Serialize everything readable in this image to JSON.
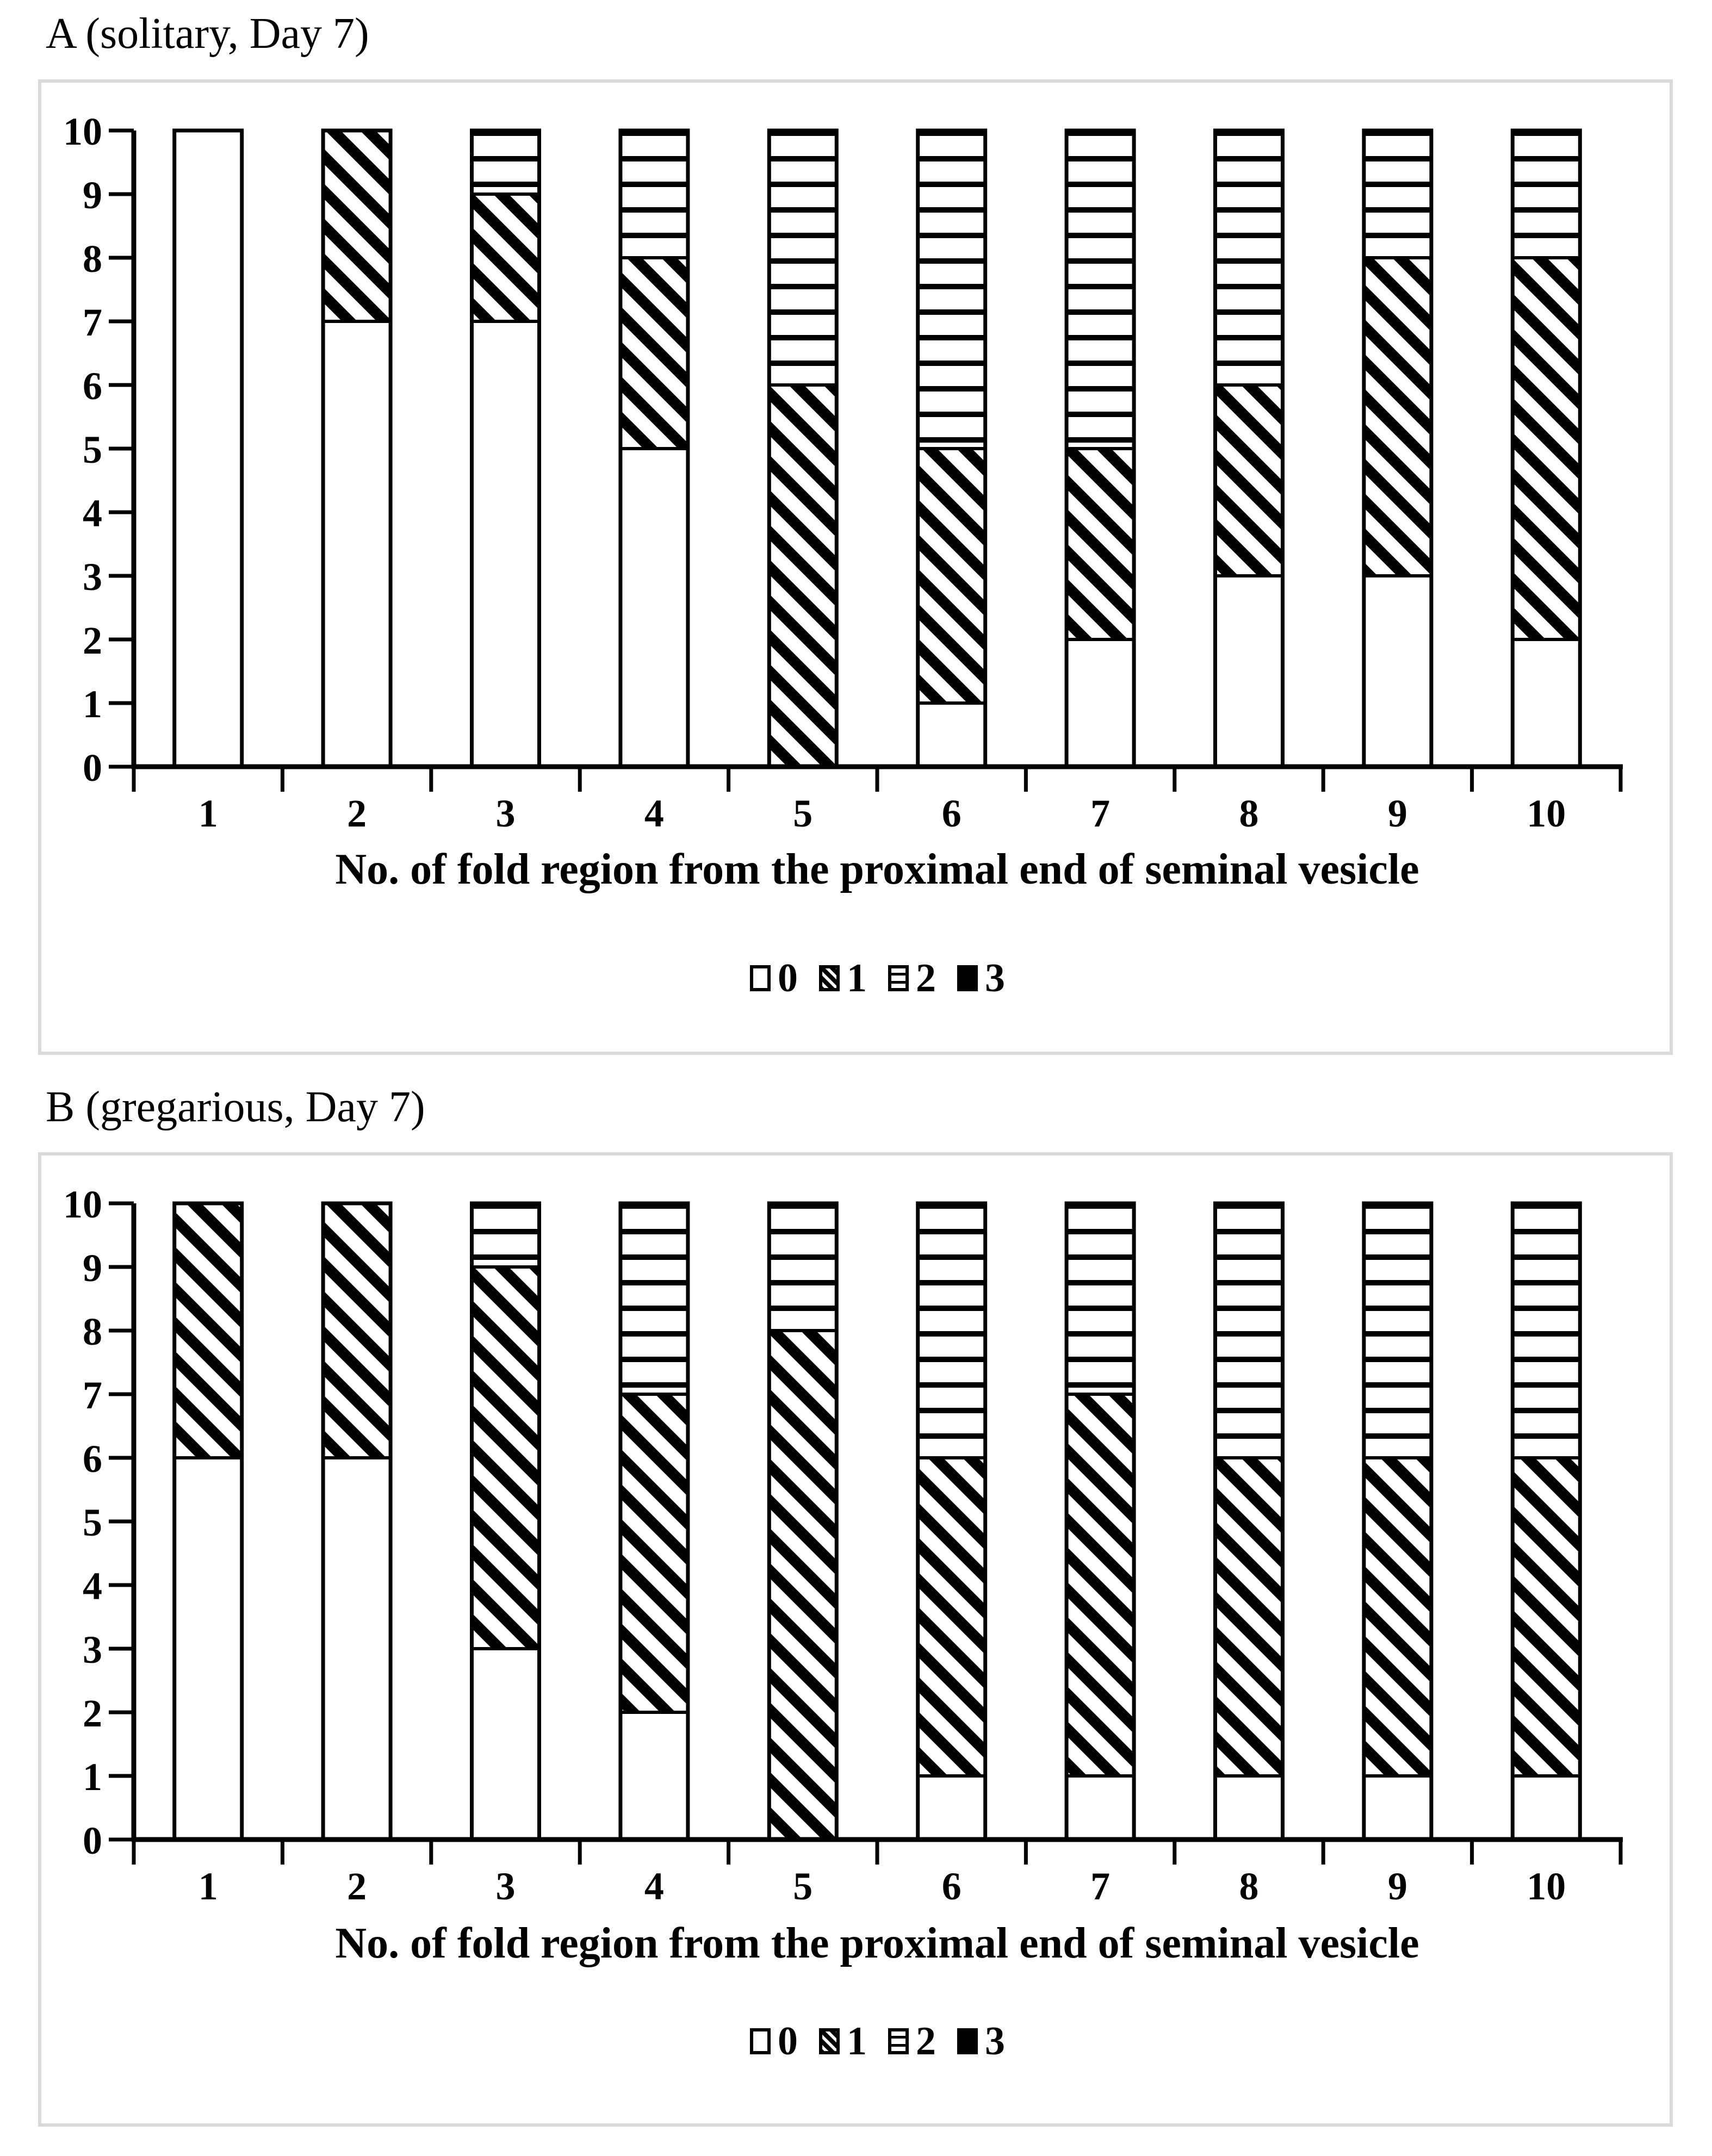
{
  "figure": {
    "background": "#ffffff",
    "panel_border_color": "#d9d9d9",
    "ink_color": "#000000"
  },
  "chart_data": [
    {
      "type": "bar",
      "stacked": true,
      "panel_label": "A",
      "title": "A (solitary, Day 7)",
      "xlabel": "No. of fold region from the proximal end of seminal vesicle",
      "ylabel": "",
      "categories": [
        "1",
        "2",
        "3",
        "4",
        "5",
        "6",
        "7",
        "8",
        "9",
        "10"
      ],
      "ylim": [
        0,
        10
      ],
      "yticks": [
        0,
        1,
        2,
        3,
        4,
        5,
        6,
        7,
        8,
        9,
        10
      ],
      "grid": false,
      "legend_position": "bottom",
      "series": [
        {
          "name": "0",
          "pattern": "white",
          "values": [
            10,
            7,
            7,
            5,
            0,
            1,
            2,
            3,
            3,
            2
          ]
        },
        {
          "name": "1",
          "pattern": "diagonal-hatch",
          "values": [
            0,
            3,
            2,
            3,
            6,
            4,
            3,
            3,
            5,
            6
          ]
        },
        {
          "name": "2",
          "pattern": "horizontal-lines",
          "values": [
            0,
            0,
            1,
            2,
            4,
            5,
            5,
            4,
            2,
            2
          ]
        },
        {
          "name": "3",
          "pattern": "solid-black",
          "values": [
            0,
            0,
            0,
            0,
            0,
            0,
            0,
            0,
            0,
            0
          ]
        }
      ]
    },
    {
      "type": "bar",
      "stacked": true,
      "panel_label": "B",
      "title": "B (gregarious, Day 7)",
      "xlabel": "No. of fold region from the proximal end of seminal vesicle",
      "ylabel": "",
      "categories": [
        "1",
        "2",
        "3",
        "4",
        "5",
        "6",
        "7",
        "8",
        "9",
        "10"
      ],
      "ylim": [
        0,
        10
      ],
      "yticks": [
        0,
        1,
        2,
        3,
        4,
        5,
        6,
        7,
        8,
        9,
        10
      ],
      "grid": false,
      "legend_position": "bottom",
      "series": [
        {
          "name": "0",
          "pattern": "white",
          "values": [
            6,
            6,
            3,
            2,
            0,
            1,
            1,
            1,
            1,
            1
          ]
        },
        {
          "name": "1",
          "pattern": "diagonal-hatch",
          "values": [
            4,
            4,
            6,
            5,
            8,
            5,
            6,
            5,
            5,
            5
          ]
        },
        {
          "name": "2",
          "pattern": "horizontal-lines",
          "values": [
            0,
            0,
            1,
            3,
            2,
            4,
            3,
            4,
            4,
            4
          ]
        },
        {
          "name": "3",
          "pattern": "solid-black",
          "values": [
            0,
            0,
            0,
            0,
            0,
            0,
            0,
            0,
            0,
            0
          ]
        }
      ]
    }
  ]
}
